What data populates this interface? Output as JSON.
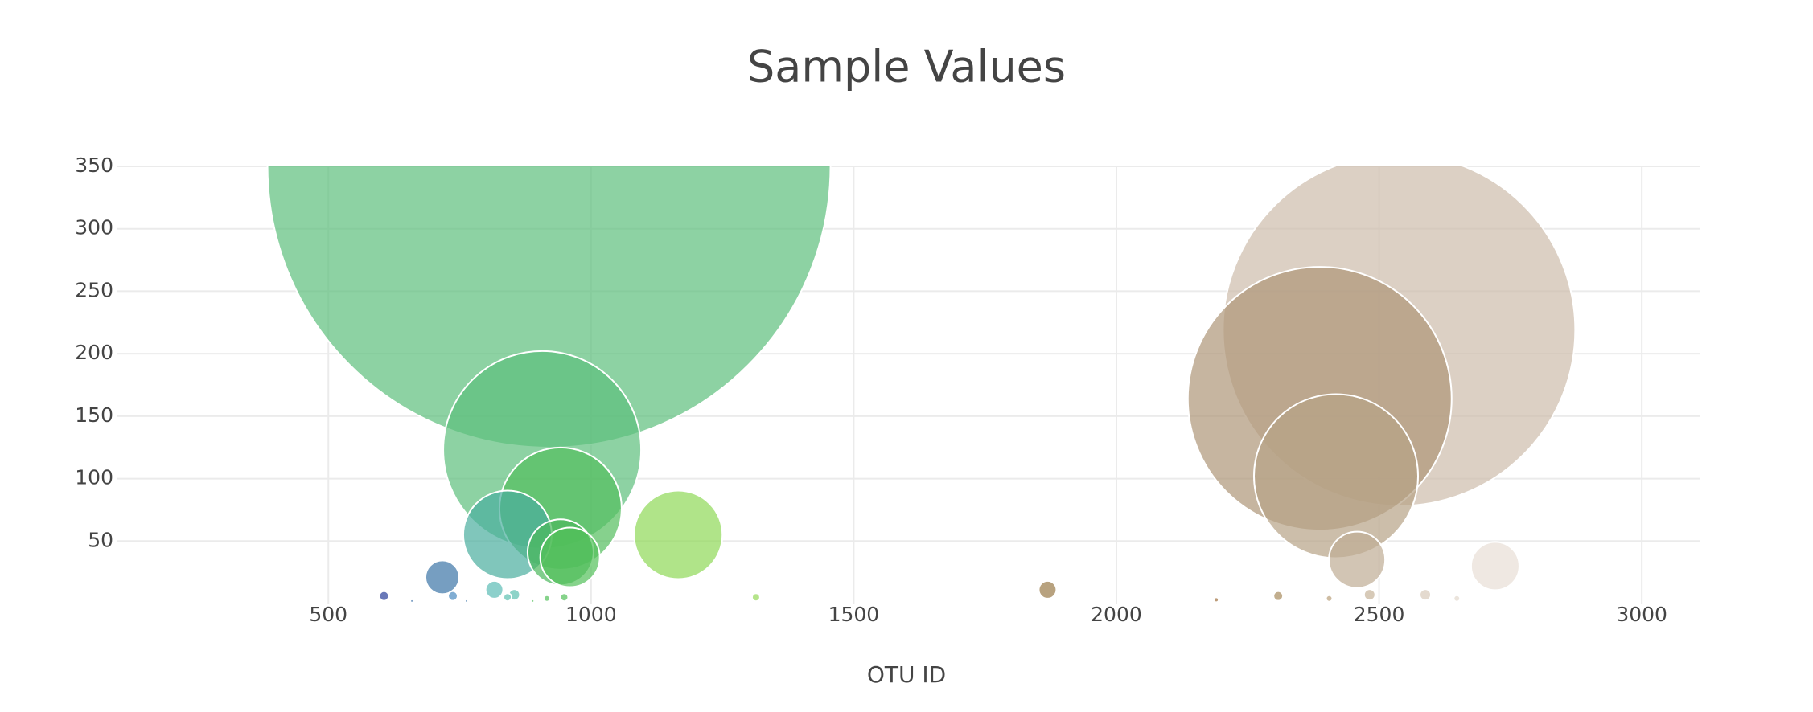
{
  "chart_data": {
    "type": "bubble",
    "title": "Sample Values",
    "x_label": "OTU ID",
    "x": [
      920,
      907,
      942,
      841,
      942,
      960,
      1166,
      717,
      816,
      606,
      737,
      854,
      841,
      949,
      916,
      1314,
      659,
      889,
      763,
      1869,
      2308,
      2405,
      2482,
      2588,
      2190,
      2648,
      2538,
      2387,
      2418,
      2458,
      2721
    ],
    "values": [
      350,
      123,
      76,
      55,
      41,
      37,
      55,
      21,
      11,
      6,
      6,
      7,
      5,
      5,
      4,
      5,
      2,
      2,
      2,
      11,
      6,
      4,
      7,
      7,
      3,
      4,
      219,
      164,
      102,
      35,
      30
    ],
    "colors": [
      "#5cbf7c",
      "#5cbf7c",
      "#53bd5c",
      "#4aae9e",
      "#4cb85c",
      "#52c05a",
      "#8fd957",
      "#3c75a6",
      "#5bbcb5",
      "#2a3f9a",
      "#4a8ac0",
      "#5cc0b0",
      "#5cc0b0",
      "#52c05a",
      "#52c05a",
      "#96d959",
      "#3a6fa8",
      "#52c05a",
      "#3c75a6",
      "#9a7a48",
      "#a88c5e",
      "#b9a07a",
      "#c6b39a",
      "#d8cbbb",
      "#a0703e",
      "#e2d8cd",
      "#cdbcab",
      "#ae9677",
      "#b7a286",
      "#bfac94",
      "#e8ded5"
    ],
    "xlim": [
      97,
      3110
    ],
    "ylim": [
      0,
      350
    ],
    "xticks": [
      500,
      1000,
      1500,
      2000,
      2500,
      3000
    ],
    "yticks": [
      50,
      100,
      150,
      200,
      250,
      300,
      350
    ],
    "grid": true
  }
}
